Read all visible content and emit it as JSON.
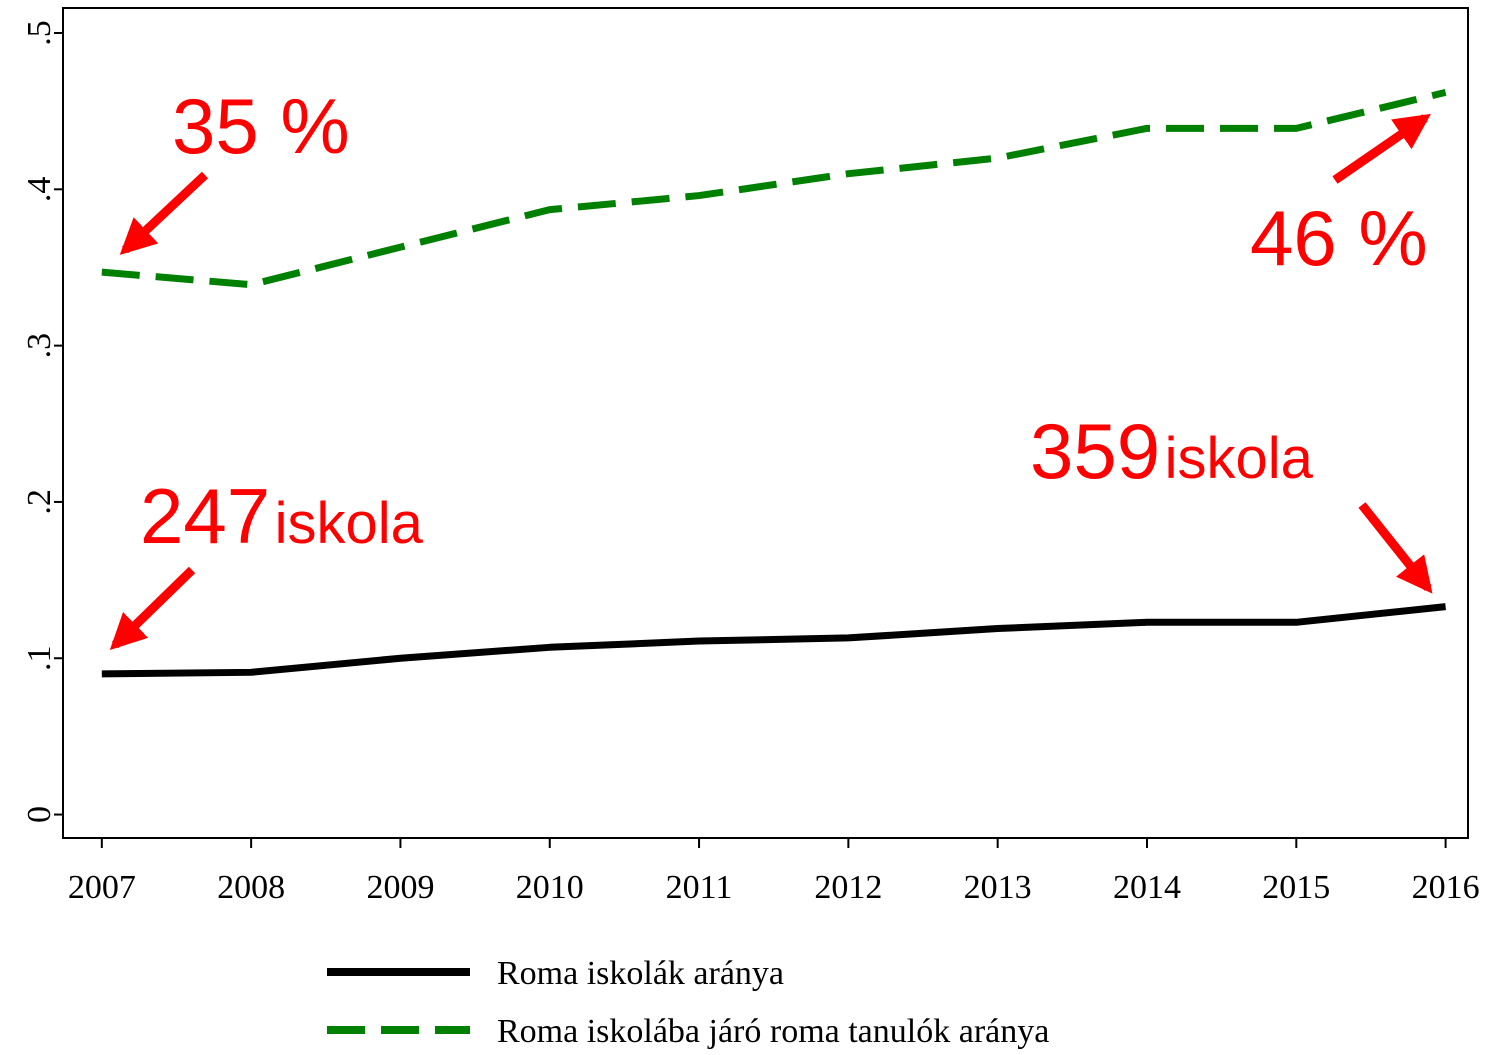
{
  "chart_data": {
    "type": "line",
    "x": [
      2007,
      2008,
      2009,
      2010,
      2011,
      2012,
      2013,
      2014,
      2015,
      2016
    ],
    "xlim": [
      2006.74,
      2016.15
    ],
    "xticks": [
      2007,
      2008,
      2009,
      2010,
      2011,
      2012,
      2013,
      2014,
      2015,
      2016
    ],
    "ylim": [
      -0.015,
      0.516
    ],
    "yticks": [
      0,
      {
        "value": 0.1,
        "label": ".1"
      },
      {
        "value": 0.2,
        "label": ".2"
      },
      {
        "value": 0.3,
        "label": ".3"
      },
      {
        "value": 0.4,
        "label": ".4"
      },
      {
        "value": 0.5,
        "label": ".5"
      }
    ],
    "series": [
      {
        "name": "Roma iskolák aránya",
        "color": "#000000",
        "style": "solid",
        "values": [
          0.09,
          0.091,
          0.1,
          0.107,
          0.111,
          0.113,
          0.119,
          0.123,
          0.123,
          0.133
        ]
      },
      {
        "name": "Roma iskolába járó roma tanulók aránya",
        "color": "#008000",
        "style": "dashed",
        "values": [
          0.347,
          0.339,
          0.363,
          0.387,
          0.396,
          0.41,
          0.42,
          0.439,
          0.439,
          0.462
        ]
      }
    ],
    "annotations": [
      {
        "text": "35 %"
      },
      {
        "text": "46 %"
      },
      {
        "text": "247",
        "suffix": "iskola"
      },
      {
        "text": "359",
        "suffix": "iskola"
      }
    ]
  }
}
